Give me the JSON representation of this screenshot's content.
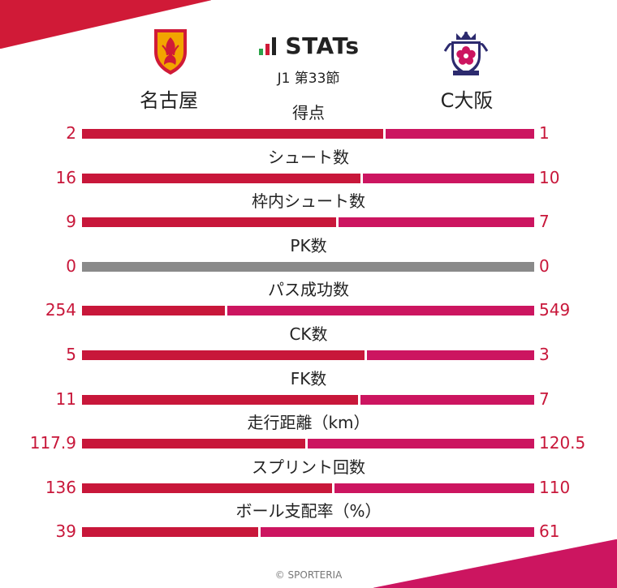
{
  "brand": {
    "name": "STATs",
    "icon": "bar-chart-icon",
    "colors": {
      "green": "#2aa34a",
      "red": "#d01a37",
      "dark": "#222222"
    }
  },
  "match": {
    "competition": "J1 第33節"
  },
  "teams": {
    "home": {
      "name": "名古屋",
      "color": "#c8173a",
      "logo": "nagoya-crest-icon"
    },
    "away": {
      "name": "C大阪",
      "color": "#cc1560",
      "logo": "cerezo-crest-icon"
    }
  },
  "stats": [
    {
      "label": "得点",
      "home": "2",
      "away": "1",
      "home_value": 2,
      "away_value": 1
    },
    {
      "label": "シュート数",
      "home": "16",
      "away": "10",
      "home_value": 16,
      "away_value": 10
    },
    {
      "label": "枠内シュート数",
      "home": "9",
      "away": "7",
      "home_value": 9,
      "away_value": 7
    },
    {
      "label": "PK数",
      "home": "0",
      "away": "0",
      "home_value": 0,
      "away_value": 0
    },
    {
      "label": "パス成功数",
      "home": "254",
      "away": "549",
      "home_value": 254,
      "away_value": 549
    },
    {
      "label": "CK数",
      "home": "5",
      "away": "3",
      "home_value": 5,
      "away_value": 3
    },
    {
      "label": "FK数",
      "home": "11",
      "away": "7",
      "home_value": 11,
      "away_value": 7
    },
    {
      "label": "走行距離（km）",
      "home": "117.9",
      "away": "120.5",
      "home_value": 117.9,
      "away_value": 120.5
    },
    {
      "label": "スプリント回数",
      "home": "136",
      "away": "110",
      "home_value": 136,
      "away_value": 110
    },
    {
      "label": "ボール支配率（%）",
      "home": "39",
      "away": "61",
      "home_value": 39,
      "away_value": 61
    }
  ],
  "footer": {
    "copyright": "© SPORTERIA"
  }
}
